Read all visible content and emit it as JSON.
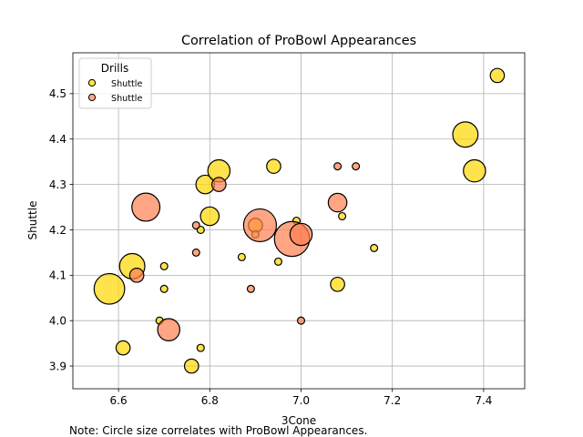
{
  "chart_data": {
    "type": "scatter",
    "title": "Correlation of ProBowl Appearances",
    "xlabel": "3Cone",
    "ylabel": "Shuttle",
    "xlim": [
      6.5,
      7.49
    ],
    "ylim": [
      3.85,
      4.59
    ],
    "xticks": [
      "6.6",
      "6.8",
      "7.0",
      "7.2",
      "7.4"
    ],
    "yticks": [
      "3.9",
      "4.0",
      "4.1",
      "4.2",
      "4.3",
      "4.4",
      "4.5"
    ],
    "grid": true,
    "legend": {
      "title": "Drills",
      "placement": "top-left"
    },
    "note": "Note: Circle size correlates with ProBowl Appearances.",
    "series": [
      {
        "name": "Shuttle",
        "color": "#FFD700",
        "points": [
          {
            "x": 6.58,
            "y": 4.07,
            "size": 6
          },
          {
            "x": 6.63,
            "y": 4.12,
            "size": 4
          },
          {
            "x": 6.61,
            "y": 3.94,
            "size": 1
          },
          {
            "x": 6.69,
            "y": 4.0,
            "size": 0
          },
          {
            "x": 6.7,
            "y": 4.12,
            "size": 0
          },
          {
            "x": 6.7,
            "y": 4.07,
            "size": 0
          },
          {
            "x": 6.76,
            "y": 3.9,
            "size": 1
          },
          {
            "x": 6.78,
            "y": 3.94,
            "size": 0
          },
          {
            "x": 6.78,
            "y": 4.2,
            "size": 0
          },
          {
            "x": 6.79,
            "y": 4.3,
            "size": 2
          },
          {
            "x": 6.8,
            "y": 4.23,
            "size": 2
          },
          {
            "x": 6.82,
            "y": 4.33,
            "size": 3
          },
          {
            "x": 6.87,
            "y": 4.14,
            "size": 0
          },
          {
            "x": 6.9,
            "y": 4.21,
            "size": 1
          },
          {
            "x": 6.9,
            "y": 4.19,
            "size": 0
          },
          {
            "x": 6.94,
            "y": 4.34,
            "size": 1
          },
          {
            "x": 6.95,
            "y": 4.13,
            "size": 0
          },
          {
            "x": 6.99,
            "y": 4.22,
            "size": 0
          },
          {
            "x": 7.08,
            "y": 4.08,
            "size": 1
          },
          {
            "x": 7.09,
            "y": 4.23,
            "size": 0
          },
          {
            "x": 7.16,
            "y": 4.16,
            "size": 0
          },
          {
            "x": 7.36,
            "y": 4.41,
            "size": 4
          },
          {
            "x": 7.38,
            "y": 4.33,
            "size": 3
          },
          {
            "x": 7.43,
            "y": 4.54,
            "size": 1
          }
        ]
      },
      {
        "name": "Shuttle",
        "color": "#FF7F50",
        "points": [
          {
            "x": 6.64,
            "y": 4.1,
            "size": 1
          },
          {
            "x": 6.66,
            "y": 4.25,
            "size": 5
          },
          {
            "x": 6.71,
            "y": 3.98,
            "size": 3
          },
          {
            "x": 6.77,
            "y": 4.21,
            "size": 0
          },
          {
            "x": 6.77,
            "y": 4.15,
            "size": 0
          },
          {
            "x": 6.82,
            "y": 4.3,
            "size": 1
          },
          {
            "x": 6.89,
            "y": 4.07,
            "size": 0
          },
          {
            "x": 6.91,
            "y": 4.21,
            "size": 7
          },
          {
            "x": 6.98,
            "y": 4.18,
            "size": 8
          },
          {
            "x": 7.0,
            "y": 4.19,
            "size": 3
          },
          {
            "x": 7.0,
            "y": 4.0,
            "size": 0
          },
          {
            "x": 7.08,
            "y": 4.34,
            "size": 0
          },
          {
            "x": 7.08,
            "y": 4.26,
            "size": 2
          },
          {
            "x": 7.12,
            "y": 4.34,
            "size": 0
          }
        ]
      }
    ]
  }
}
